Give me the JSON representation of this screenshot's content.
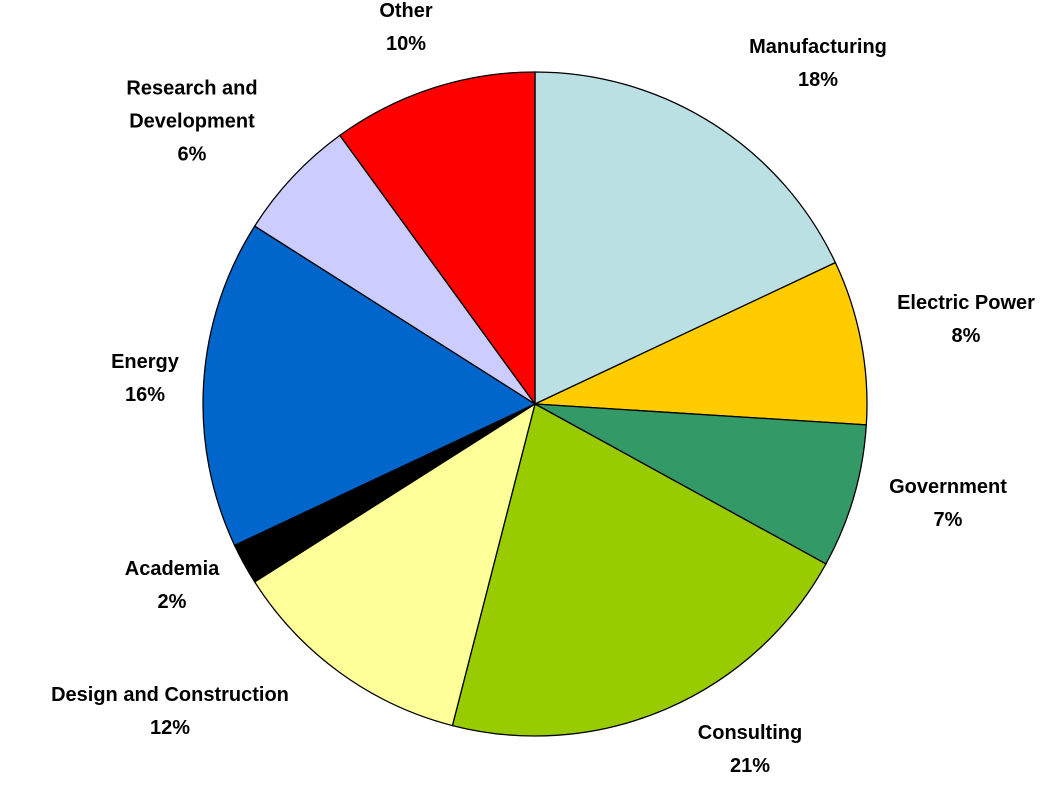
{
  "chart_data": {
    "type": "pie",
    "slices": [
      {
        "label_lines": [
          "Manufacturing"
        ],
        "pct_text": "18%",
        "value": 18,
        "color": "#bbe0e3"
      },
      {
        "label_lines": [
          "Electric Power"
        ],
        "pct_text": "8%",
        "value": 8,
        "color": "#ffcc00"
      },
      {
        "label_lines": [
          "Government"
        ],
        "pct_text": "7%",
        "value": 7,
        "color": "#339966"
      },
      {
        "label_lines": [
          "Consulting"
        ],
        "pct_text": "21%",
        "value": 21,
        "color": "#99cc00"
      },
      {
        "label_lines": [
          "Design and Construction"
        ],
        "pct_text": "12%",
        "value": 12,
        "color": "#ffff99"
      },
      {
        "label_lines": [
          "Academia"
        ],
        "pct_text": "2%",
        "value": 2,
        "color": "#000000"
      },
      {
        "label_lines": [
          "Energy"
        ],
        "pct_text": "16%",
        "value": 16,
        "color": "#0066cc"
      },
      {
        "label_lines": [
          "Research and",
          "Development"
        ],
        "pct_text": "6%",
        "value": 6,
        "color": "#ccccff"
      },
      {
        "label_lines": [
          "Other"
        ],
        "pct_text": "10%",
        "value": 10,
        "color": "#ff0000"
      }
    ]
  }
}
